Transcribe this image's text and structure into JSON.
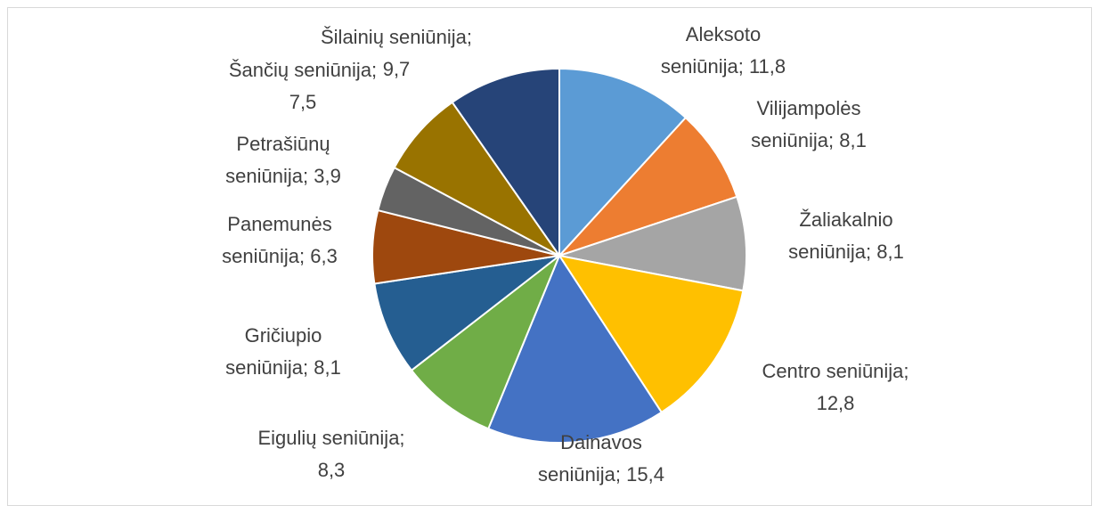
{
  "chart_data": {
    "type": "pie",
    "values": [
      11.8,
      8.1,
      8.1,
      12.8,
      15.4,
      8.3,
      8.1,
      6.3,
      3.9,
      7.5,
      9.7
    ],
    "value_labels": [
      "Aleksoto seniūnija; 11,8",
      "Vilijampolės seniūnija; 8,1",
      "Žaliakalnio seniūnija; 8,1",
      "Centro seniūnija; 12,8",
      "Dainavos seniūnija; 15,4",
      "Eigulių seniūnija; 8,3",
      "Gričiupio seniūnija; 8,1",
      "Panemunės seniūnija; 6,3",
      "Petrašiūnų seniūnija; 3,9",
      "Šančių seniūnija; 7,5",
      "Šilainių seniūnija; 9,7"
    ],
    "colors": [
      "#5b9bd5",
      "#ed7d31",
      "#a5a5a5",
      "#ffc000",
      "#4472c4",
      "#70ad47",
      "#255e91",
      "#9e480e",
      "#636363",
      "#997300",
      "#264478"
    ]
  }
}
